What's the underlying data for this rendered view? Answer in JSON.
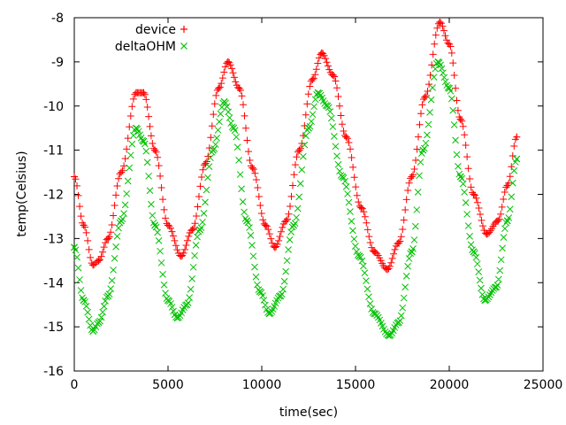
{
  "chart_data": {
    "type": "scatter",
    "title": "",
    "xlabel": "time(sec)",
    "ylabel": "temp(Celsius)",
    "xlim": [
      0,
      25000
    ],
    "ylim": [
      -16,
      -8
    ],
    "xticks": [
      0,
      5000,
      10000,
      15000,
      20000,
      25000
    ],
    "yticks": [
      -16,
      -15,
      -14,
      -13,
      -12,
      -11,
      -10,
      -9,
      -8
    ],
    "grid": false,
    "legend_position": "top-left",
    "series": [
      {
        "name": "device",
        "marker": "plus",
        "color": "#ff0000",
        "x": [
          0,
          500,
          1000,
          1300,
          1800,
          2500,
          3300,
          3700,
          4300,
          5000,
          5700,
          6300,
          7000,
          7700,
          8200,
          8800,
          9500,
          10200,
          10700,
          11300,
          12000,
          12700,
          13200,
          13800,
          14500,
          15300,
          16000,
          16700,
          17300,
          18000,
          18700,
          19500,
          20000,
          20600,
          21300,
          22000,
          22600,
          23100,
          23600
        ],
        "values": [
          -11.6,
          -12.7,
          -13.6,
          -13.5,
          -13.0,
          -11.5,
          -9.7,
          -9.7,
          -11.0,
          -12.7,
          -13.4,
          -12.8,
          -11.3,
          -9.6,
          -9.0,
          -9.6,
          -11.4,
          -12.7,
          -13.2,
          -12.6,
          -11.0,
          -9.4,
          -8.8,
          -9.3,
          -10.7,
          -12.3,
          -13.3,
          -13.7,
          -13.1,
          -11.6,
          -9.8,
          -8.1,
          -8.6,
          -10.3,
          -12.0,
          -12.9,
          -12.6,
          -11.8,
          -10.7
        ]
      },
      {
        "name": "deltaOHM",
        "marker": "cross",
        "color": "#00c000",
        "x": [
          0,
          500,
          1000,
          1300,
          1800,
          2500,
          3300,
          3700,
          4300,
          5000,
          5500,
          6000,
          6700,
          7400,
          8000,
          8500,
          9200,
          9900,
          10400,
          11000,
          11700,
          12500,
          13000,
          13500,
          14300,
          15200,
          16000,
          16800,
          17300,
          18000,
          18600,
          19400,
          20000,
          20600,
          21300,
          21900,
          22500,
          23100,
          23600
        ],
        "values": [
          -13.2,
          -14.4,
          -15.1,
          -14.9,
          -14.3,
          -12.6,
          -10.5,
          -10.8,
          -12.7,
          -14.4,
          -14.8,
          -14.5,
          -12.8,
          -11.0,
          -9.9,
          -10.5,
          -12.6,
          -14.2,
          -14.7,
          -14.3,
          -12.7,
          -10.5,
          -9.7,
          -10.0,
          -11.6,
          -13.4,
          -14.7,
          -15.2,
          -14.9,
          -13.3,
          -11.0,
          -9.0,
          -9.6,
          -11.6,
          -13.3,
          -14.4,
          -14.1,
          -12.6,
          -11.2
        ]
      }
    ]
  }
}
